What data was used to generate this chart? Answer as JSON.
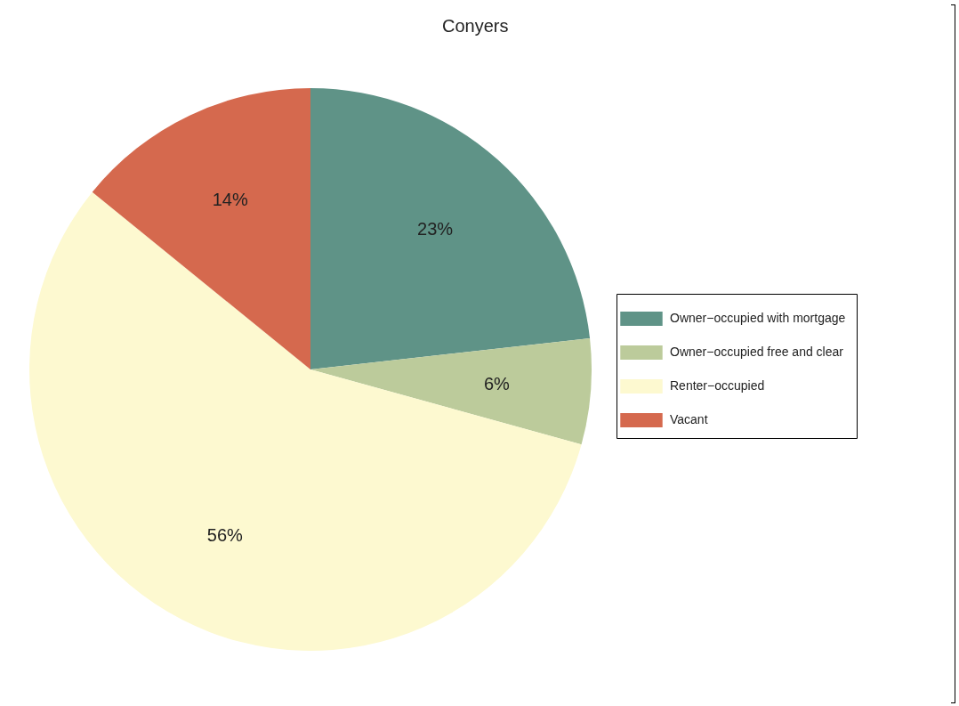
{
  "chart_data": {
    "type": "pie",
    "title": "Conyers",
    "categories": [
      "Owner−occupied with mortgage",
      "Owner−occupied free and clear",
      "Renter−occupied",
      "Vacant"
    ],
    "values": [
      23,
      6,
      56,
      14
    ],
    "colors": [
      "#5f9387",
      "#bccb9b",
      "#fdf9d0",
      "#d5694e"
    ],
    "value_labels": [
      "23%",
      "6%",
      "56%",
      "14%"
    ],
    "legend": "right"
  }
}
